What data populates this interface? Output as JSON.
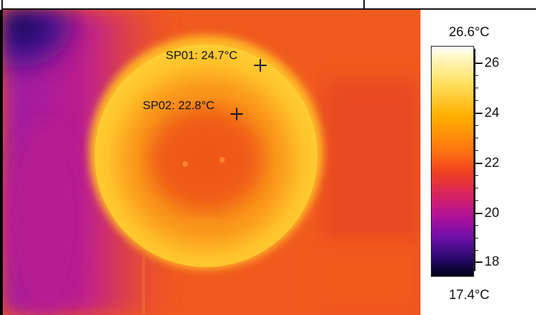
{
  "thermal_image": {
    "spots": [
      {
        "label": "SP01: 24.7°C"
      },
      {
        "label": "SP02: 22.8°C"
      }
    ]
  },
  "scale": {
    "max_label": "26.6°C",
    "min_label": "17.4°C",
    "ticks": [
      "26",
      "24",
      "22",
      "20",
      "18"
    ],
    "palette": "iron"
  }
}
